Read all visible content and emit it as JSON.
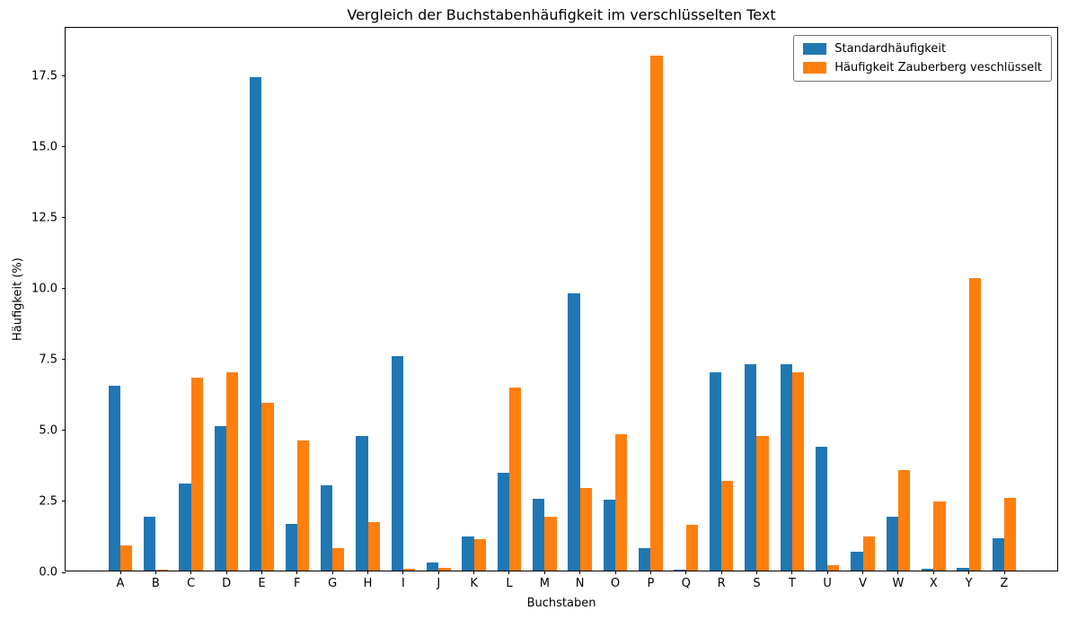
{
  "figure": {
    "background": "#ffffff",
    "text_color": "#000000"
  },
  "chart_data": {
    "type": "bar",
    "title": "Vergleich der Buchstabenhäufigkeit im verschlüsselten Text",
    "xlabel": "Buchstaben",
    "ylabel": "Häufigkeit (%)",
    "categories": [
      "A",
      "B",
      "C",
      "D",
      "E",
      "F",
      "G",
      "H",
      "I",
      "J",
      "K",
      "L",
      "M",
      "N",
      "O",
      "P",
      "Q",
      "R",
      "S",
      "T",
      "U",
      "V",
      "W",
      "X",
      "Y",
      "Z"
    ],
    "series": [
      {
        "name": "Standardhäufigkeit",
        "color": "#1f77b4",
        "values": [
          6.51,
          1.89,
          3.06,
          5.08,
          17.4,
          1.66,
          3.01,
          4.76,
          7.55,
          0.27,
          1.21,
          3.44,
          2.53,
          9.78,
          2.51,
          0.79,
          0.02,
          7.0,
          7.27,
          7.27,
          4.35,
          0.67,
          1.89,
          0.05,
          0.1,
          1.13
        ]
      },
      {
        "name": "Häufigkeit Zauberberg veschlüsselt",
        "color": "#ff7f0e",
        "values": [
          0.9,
          0.04,
          6.8,
          7.0,
          5.9,
          4.6,
          0.8,
          1.7,
          0.06,
          0.1,
          1.1,
          6.45,
          1.9,
          2.9,
          4.8,
          18.15,
          1.6,
          3.15,
          4.75,
          7.0,
          0.2,
          1.2,
          3.55,
          2.45,
          10.3,
          2.55
        ]
      }
    ],
    "ylim": [
      0,
      19.2
    ],
    "y_ticks": [
      0.0,
      2.5,
      5.0,
      7.5,
      10.0,
      12.5,
      15.0,
      17.5
    ],
    "y_tick_labels": [
      "0.0",
      "2.5",
      "5.0",
      "7.5",
      "10.0",
      "12.5",
      "15.0",
      "17.5"
    ],
    "grid": false,
    "legend_position": "upper right"
  }
}
